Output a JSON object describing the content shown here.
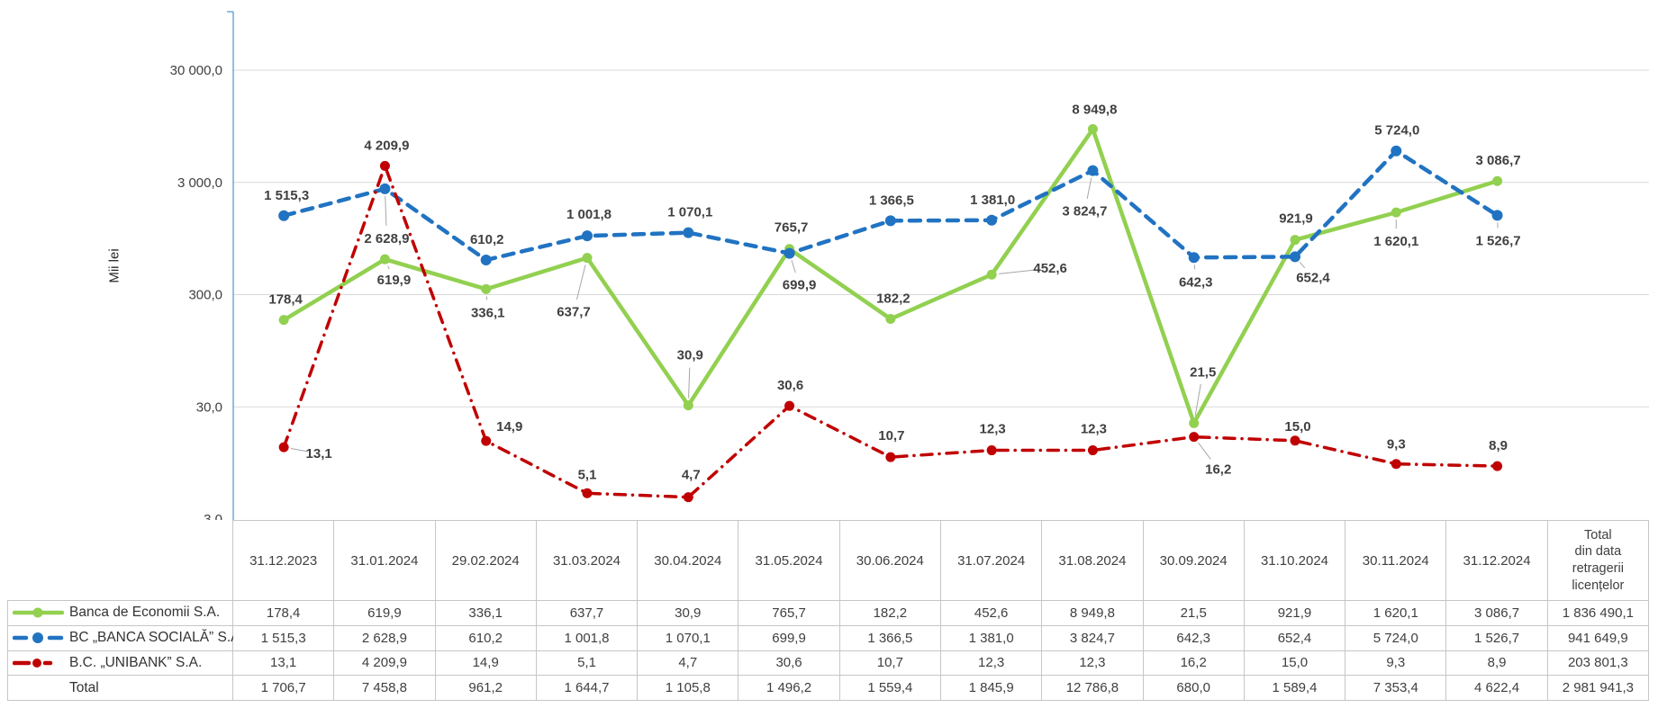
{
  "chart_data": {
    "type": "line",
    "title": "",
    "ylabel": "Mii lei",
    "y_axis": {
      "scale": "log",
      "min": 3,
      "max": 100000,
      "ticks": [
        {
          "label": "30 000,0",
          "value": 30000
        },
        {
          "label": "3 000,0",
          "value": 3000
        },
        {
          "label": "300,0",
          "value": 300
        },
        {
          "label": "30,0",
          "value": 30
        },
        {
          "label": "3,0",
          "value": 3
        }
      ]
    },
    "categories": [
      "31.12.2023",
      "31.01.2024",
      "29.02.2024",
      "31.03.2024",
      "30.04.2024",
      "31.05.2024",
      "30.06.2024",
      "31.07.2024",
      "31.08.2024",
      "30.09.2024",
      "31.10.2024",
      "30.11.2024",
      "31.12.2024"
    ],
    "grid": true,
    "gridline_color": "#D9D9D9",
    "axis_color": "#5B9BD5",
    "label_color": "#404040",
    "leader_color": "#A6A6A6",
    "border_color": "#C6C6C6",
    "legend_position": "table-left-column",
    "series": [
      {
        "name": "Banca de Economii S.A.",
        "color": "#92D050",
        "style": "solid",
        "values": [
          178.4,
          619.9,
          336.1,
          637.7,
          30.9,
          765.7,
          182.2,
          452.6,
          8949.8,
          21.5,
          921.9,
          1620.1,
          3086.7
        ],
        "labels": [
          "178,4",
          "619,9",
          "336,1",
          "637,7",
          "30,9",
          "765,7",
          "182,2",
          "452,6",
          "8 949,8",
          "21,5",
          "921,9",
          "1 620,1",
          "3 086,7"
        ],
        "label_offsets": [
          [
            2,
            -23
          ],
          [
            10,
            23
          ],
          [
            2,
            26
          ],
          [
            -15,
            60
          ],
          [
            2,
            -56
          ],
          [
            2,
            -24
          ],
          [
            3,
            -23
          ],
          [
            65,
            -7
          ],
          [
            2,
            -22
          ],
          [
            10,
            -57
          ],
          [
            1,
            -24
          ],
          [
            0,
            32
          ],
          [
            1,
            -23
          ]
        ],
        "leaders": [
          0,
          1,
          1,
          1,
          1,
          0,
          0,
          1,
          0,
          1,
          0,
          1,
          0
        ],
        "total": "1 836 490,1"
      },
      {
        "name": "BC „BANCA SOCIALĂ” S.A.",
        "color": "#2173C2",
        "style": "dashed",
        "values": [
          1515.3,
          2628.9,
          610.2,
          1001.8,
          1070.1,
          699.9,
          1366.5,
          1381.0,
          3824.7,
          642.3,
          652.4,
          5724.0,
          1526.7
        ],
        "labels": [
          "1 515,3",
          "2 628,9",
          "610,2",
          "1 001,8",
          "1 070,1",
          "699,9",
          "1 366,5",
          "1 381,0",
          "3 824,7",
          "642,3",
          "652,4",
          "5 724,0",
          "1 526,7"
        ],
        "label_offsets": [
          [
            3,
            -23
          ],
          [
            2,
            55
          ],
          [
            1,
            -23
          ],
          [
            2,
            -24
          ],
          [
            2,
            -23
          ],
          [
            11,
            35
          ],
          [
            1,
            -23
          ],
          [
            1,
            -23
          ],
          [
            -9,
            45
          ],
          [
            2,
            27
          ],
          [
            20,
            23
          ],
          [
            1,
            -23
          ],
          [
            1,
            28
          ]
        ],
        "leaders": [
          0,
          1,
          0,
          0,
          0,
          1,
          0,
          0,
          1,
          1,
          1,
          0,
          1
        ],
        "total": "941 649,9"
      },
      {
        "name": "B.C. „UNIBANK” S.A.",
        "color": "#C00000",
        "style": "dash-dot",
        "values": [
          13.1,
          4209.9,
          14.9,
          5.1,
          4.7,
          30.6,
          10.7,
          12.3,
          12.3,
          16.2,
          15.0,
          9.3,
          8.9
        ],
        "labels": [
          "13,1",
          "4 209,9",
          "14,9",
          "5,1",
          "4,7",
          "30,6",
          "10,7",
          "12,3",
          "12,3",
          "16,2",
          "15,0",
          "9,3",
          "8,9"
        ],
        "label_offsets": [
          [
            39,
            7
          ],
          [
            2,
            -23
          ],
          [
            26,
            -16
          ],
          [
            0,
            -21
          ],
          [
            3,
            -25
          ],
          [
            1,
            -23
          ],
          [
            1,
            -24
          ],
          [
            1,
            -24
          ],
          [
            1,
            -24
          ],
          [
            27,
            36
          ],
          [
            3,
            -16
          ],
          [
            0,
            -22
          ],
          [
            1,
            -23
          ]
        ],
        "leaders": [
          1,
          0,
          0,
          0,
          0,
          0,
          0,
          0,
          0,
          1,
          0,
          0,
          0
        ],
        "total": "203 801,3"
      }
    ],
    "total_row": {
      "label": "Total",
      "values": [
        "1 706,7",
        "7 458,8",
        "961,2",
        "1 644,7",
        "1 105,8",
        "1 496,2",
        "1 559,4",
        "1 845,9",
        "12 786,8",
        "680,0",
        "1 589,4",
        "7 353,4",
        "4 622,4"
      ],
      "total": "2 981 941,3"
    },
    "total_column_header": [
      "Total",
      "din data",
      "retragerii",
      "licențelor"
    ]
  }
}
